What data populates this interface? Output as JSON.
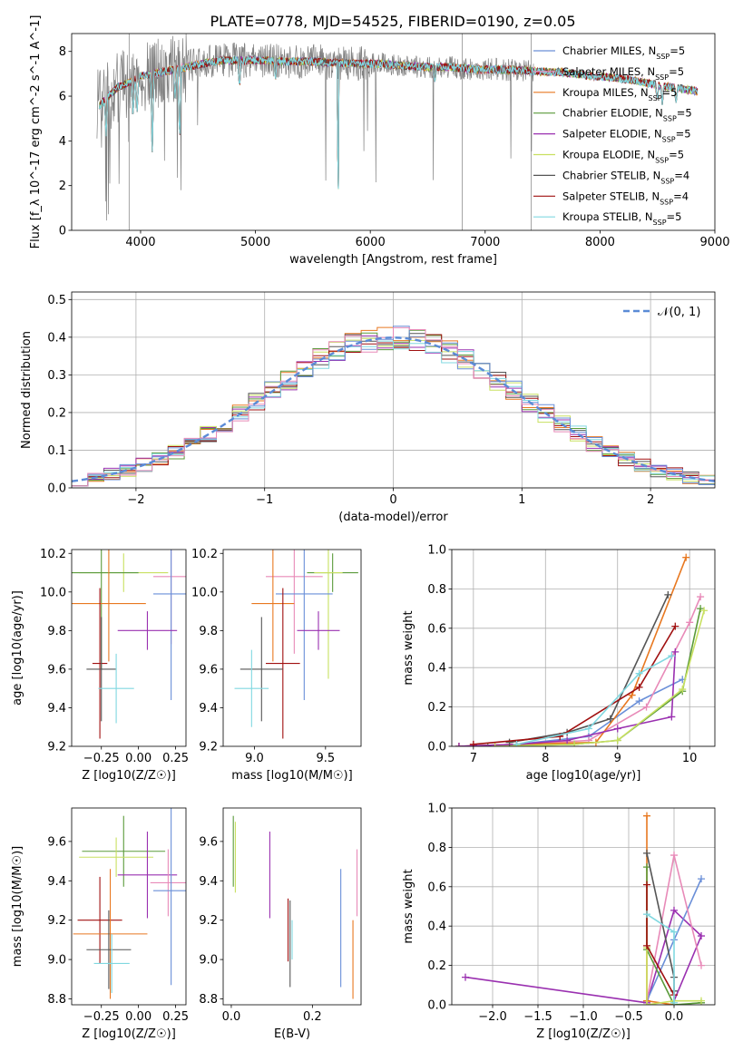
{
  "title": "PLATE=0778, MJD=54525, FIBERID=0190, z=0.05",
  "colors": {
    "Chabrier MILES": "#6a8fd8",
    "Salpeter MILES": "#e88ab8",
    "Kroupa MILES": "#e87820",
    "Chabrier ELODIE": "#5a9a3a",
    "Salpeter ELODIE": "#9a30b0",
    "Kroupa ELODIE": "#c8e060",
    "Chabrier STELIB": "#555555",
    "Salpeter STELIB": "#a01010",
    "Kroupa STELIB": "#80d8e0",
    "data": "#808080",
    "normal": "#5b8bd6"
  },
  "chart_data": [
    {
      "type": "line",
      "id": "spectrum",
      "xlabel": "wavelength [Angstrom, rest frame]",
      "ylabel": "Flux [f_λ 10^-17 erg cm^-2 s^-1 A^-1]",
      "xlim": [
        3400,
        9000
      ],
      "ylim": [
        0,
        8.8
      ],
      "xticks": [
        4000,
        5000,
        6000,
        7000,
        8000,
        9000
      ],
      "yticks": [
        0,
        2,
        4,
        6,
        8
      ],
      "grid": false,
      "legend_position": "right",
      "legend": [
        "Chabrier MILES, N_SSP=5",
        "Salpeter MILES, N_SSP=5",
        "Kroupa MILES, N_SSP=5",
        "Chabrier ELODIE, N_SSP=5",
        "Salpeter ELODIE, N_SSP=5",
        "Kroupa ELODIE, N_SSP=5",
        "Chabrier STELIB, N_SSP=4",
        "Salpeter STELIB, N_SSP=4",
        "Kroupa STELIB, N_SSP=5"
      ],
      "continuum": {
        "wavelength": [
          3650,
          3700,
          3800,
          3900,
          4000,
          4100,
          4300,
          4500,
          4700,
          4900,
          5100,
          5300,
          5500,
          5700,
          5900,
          6100,
          6300,
          6500,
          6700,
          6900,
          7100,
          7300,
          7500,
          7700,
          7900,
          8100,
          8300,
          8500,
          8700,
          8850
        ],
        "flux": [
          5.6,
          5.9,
          6.4,
          6.6,
          6.9,
          7.0,
          7.2,
          7.4,
          7.6,
          7.6,
          7.6,
          7.55,
          7.55,
          7.5,
          7.45,
          7.45,
          7.35,
          7.3,
          7.3,
          7.2,
          7.2,
          7.15,
          7.1,
          7.05,
          6.9,
          6.85,
          6.7,
          6.5,
          6.35,
          6.2
        ]
      },
      "model_absorption_features": [
        {
          "wavelength": 3700,
          "flux": 4.2
        },
        {
          "wavelength": 3935,
          "flux": 5.1
        },
        {
          "wavelength": 3970,
          "flux": 5.3
        },
        {
          "wavelength": 4102,
          "flux": 3.5
        },
        {
          "wavelength": 4300,
          "flux": 5.9
        },
        {
          "wavelength": 4340,
          "flux": 3.8
        },
        {
          "wavelength": 4861,
          "flux": 6.3
        },
        {
          "wavelength": 5175,
          "flux": 6.7
        },
        {
          "wavelength": 5720,
          "flux": 0.0
        },
        {
          "wavelength": 6563,
          "flux": 6.6
        },
        {
          "wavelength": 8498,
          "flux": 5.8
        },
        {
          "wavelength": 8542,
          "flux": 5.6
        },
        {
          "wavelength": 8662,
          "flux": 5.7
        }
      ],
      "data_gaps": [
        {
          "wavelength": 3900,
          "flux": 0.0
        },
        {
          "wavelength": 6800,
          "flux": 0.0
        },
        {
          "wavelength": 7400,
          "flux": 0.0
        }
      ]
    },
    {
      "type": "bar",
      "id": "residual_hist",
      "xlabel": "(data-model)/error",
      "ylabel": "Normed distribution",
      "xlim": [
        -2.5,
        2.5
      ],
      "ylim": [
        0,
        0.52
      ],
      "xticks": [
        -2,
        -1,
        0,
        1,
        2
      ],
      "yticks": [
        0.0,
        0.1,
        0.2,
        0.3,
        0.4,
        0.5
      ],
      "grid": true,
      "legend_position": "top-right",
      "legend": [
        "N(0,1)"
      ],
      "bin_width": 0.125
    },
    {
      "type": "scatter",
      "id": "age_vs_Z",
      "xlabel": "Z [log10(Z/Z☉)]",
      "ylabel": "age [log10(age/yr)]",
      "xlim": [
        -0.45,
        0.32
      ],
      "ylim": [
        9.2,
        10.22
      ],
      "xticks": [
        -0.25,
        0.0,
        0.25
      ],
      "yticks": [
        9.2,
        9.4,
        9.6,
        9.8,
        10.0,
        10.2
      ],
      "points": [
        {
          "model": "Kroupa ELODIE",
          "x": -0.1,
          "y": 10.1,
          "xerr": 0.3,
          "yerr": 0.1
        },
        {
          "model": "Chabrier ELODIE",
          "x": -0.25,
          "y": 10.1,
          "xerr": 0.25,
          "yerr": 0.5
        },
        {
          "model": "Salpeter MILES",
          "x": 0.22,
          "y": 10.08,
          "xerr": 0.12,
          "yerr": 0.35
        },
        {
          "model": "Chabrier MILES",
          "x": 0.22,
          "y": 9.99,
          "xerr": 0.12,
          "yerr": 0.55
        },
        {
          "model": "Kroupa MILES",
          "x": -0.2,
          "y": 9.94,
          "xerr": 0.25,
          "yerr": 0.3
        },
        {
          "model": "Salpeter ELODIE",
          "x": 0.06,
          "y": 9.8,
          "xerr": 0.2,
          "yerr": 0.1
        },
        {
          "model": "Salpeter STELIB",
          "x": -0.26,
          "y": 9.63,
          "xerr": 0.05,
          "yerr": 0.39
        },
        {
          "model": "Chabrier STELIB",
          "x": -0.25,
          "y": 9.6,
          "xerr": 0.1,
          "yerr": 0.27
        },
        {
          "model": "Kroupa STELIB",
          "x": -0.15,
          "y": 9.5,
          "xerr": 0.12,
          "yerr": 0.18
        }
      ]
    },
    {
      "type": "scatter",
      "id": "age_vs_mass",
      "xlabel": "mass [log10(M/M☉)]",
      "ylabel": "",
      "xlim": [
        8.78,
        9.75
      ],
      "ylim": [
        9.2,
        10.22
      ],
      "xticks": [
        9.0,
        9.5
      ],
      "yticks": [
        9.2,
        9.4,
        9.6,
        9.8,
        10.0,
        10.2
      ],
      "points": [
        {
          "model": "Chabrier ELODIE",
          "x": 9.55,
          "y": 10.1,
          "xerr": 0.18,
          "yerr": 0.1
        },
        {
          "model": "Kroupa ELODIE",
          "x": 9.52,
          "y": 10.1,
          "xerr": 0.1,
          "yerr": 0.55
        },
        {
          "model": "Salpeter MILES",
          "x": 9.28,
          "y": 10.08,
          "xerr": 0.2,
          "yerr": 0.4
        },
        {
          "model": "Chabrier MILES",
          "x": 9.35,
          "y": 9.99,
          "xerr": 0.2,
          "yerr": 0.55
        },
        {
          "model": "Kroupa MILES",
          "x": 9.13,
          "y": 9.94,
          "xerr": 0.15,
          "yerr": 0.3
        },
        {
          "model": "Salpeter ELODIE",
          "x": 9.45,
          "y": 9.8,
          "xerr": 0.15,
          "yerr": 0.1
        },
        {
          "model": "Salpeter STELIB",
          "x": 9.2,
          "y": 9.63,
          "xerr": 0.12,
          "yerr": 0.39
        },
        {
          "model": "Chabrier STELIB",
          "x": 9.05,
          "y": 9.6,
          "xerr": 0.15,
          "yerr": 0.27
        },
        {
          "model": "Kroupa STELIB",
          "x": 8.98,
          "y": 9.5,
          "xerr": 0.12,
          "yerr": 0.2
        }
      ]
    },
    {
      "type": "line",
      "id": "weight_vs_age",
      "xlabel": "age [log10(age/yr)]",
      "ylabel": "mass weight",
      "xlim": [
        6.7,
        10.35
      ],
      "ylim": [
        0.0,
        1.0
      ],
      "xticks": [
        7,
        8,
        9,
        10
      ],
      "yticks": [
        0.0,
        0.2,
        0.4,
        0.6,
        0.8,
        1.0
      ],
      "grid": true,
      "series": [
        {
          "model": "Chabrier MILES",
          "x": [
            6.8,
            7.6,
            8.6,
            9.3,
            9.9
          ],
          "y": [
            0.0,
            0.01,
            0.05,
            0.23,
            0.34
          ]
        },
        {
          "model": "Salpeter MILES",
          "x": [
            6.8,
            7.6,
            8.6,
            9.4,
            10.0,
            10.15
          ],
          "y": [
            0.0,
            0.01,
            0.03,
            0.2,
            0.63,
            0.76
          ]
        },
        {
          "model": "Kroupa MILES",
          "x": [
            6.8,
            7.6,
            8.7,
            9.2,
            9.95
          ],
          "y": [
            0.0,
            0.01,
            0.02,
            0.26,
            0.96
          ]
        },
        {
          "model": "Chabrier ELODIE",
          "x": [
            7.2,
            8.4,
            9.0,
            9.9,
            10.15
          ],
          "y": [
            0.0,
            0.01,
            0.03,
            0.28,
            0.7
          ]
        },
        {
          "model": "Salpeter ELODIE",
          "x": [
            6.8,
            7.6,
            8.3,
            9.0,
            9.75,
            9.8
          ],
          "y": [
            0.0,
            0.01,
            0.03,
            0.09,
            0.15,
            0.48
          ]
        },
        {
          "model": "Kroupa ELODIE",
          "x": [
            7.3,
            8.4,
            9.0,
            9.9,
            10.2
          ],
          "y": [
            0.0,
            0.01,
            0.03,
            0.29,
            0.69
          ]
        },
        {
          "model": "Chabrier STELIB",
          "x": [
            7.5,
            8.3,
            8.9,
            9.7
          ],
          "y": [
            0.02,
            0.07,
            0.14,
            0.77
          ]
        },
        {
          "model": "Salpeter STELIB",
          "x": [
            7.0,
            8.2,
            9.3,
            9.8
          ],
          "y": [
            0.01,
            0.05,
            0.3,
            0.61
          ]
        },
        {
          "model": "Kroupa STELIB",
          "x": [
            7.6,
            8.6,
            9.3,
            9.75
          ],
          "y": [
            0.01,
            0.09,
            0.37,
            0.46
          ]
        }
      ]
    },
    {
      "type": "scatter",
      "id": "mass_vs_Z",
      "xlabel": "Z [log10(Z/Z☉)]",
      "ylabel": "mass [log10(M/M☉)]",
      "xlim": [
        -0.45,
        0.32
      ],
      "ylim": [
        8.77,
        9.77
      ],
      "xticks": [
        -0.25,
        0.0,
        0.25
      ],
      "yticks": [
        8.8,
        9.0,
        9.2,
        9.4,
        9.6
      ],
      "points": [
        {
          "model": "Chabrier ELODIE",
          "x": -0.1,
          "y": 9.55,
          "xerr": 0.28,
          "yerr": 0.18
        },
        {
          "model": "Kroupa ELODIE",
          "x": -0.15,
          "y": 9.52,
          "xerr": 0.25,
          "yerr": 0.1
        },
        {
          "model": "Salpeter ELODIE",
          "x": 0.06,
          "y": 9.43,
          "xerr": 0.2,
          "yerr": 0.22
        },
        {
          "model": "Salpeter MILES",
          "x": 0.2,
          "y": 9.39,
          "xerr": 0.12,
          "yerr": 0.17
        },
        {
          "model": "Chabrier MILES",
          "x": 0.22,
          "y": 9.35,
          "xerr": 0.12,
          "yerr": 0.48
        },
        {
          "model": "Salpeter STELIB",
          "x": -0.26,
          "y": 9.2,
          "xerr": 0.15,
          "yerr": 0.22
        },
        {
          "model": "Kroupa MILES",
          "x": -0.19,
          "y": 9.13,
          "xerr": 0.25,
          "yerr": 0.33
        },
        {
          "model": "Chabrier STELIB",
          "x": -0.2,
          "y": 9.05,
          "xerr": 0.15,
          "yerr": 0.2
        },
        {
          "model": "Kroupa STELIB",
          "x": -0.18,
          "y": 8.98,
          "xerr": 0.12,
          "yerr": 0.15
        }
      ]
    },
    {
      "type": "scatter",
      "id": "mass_vs_ebv",
      "xlabel": "E(B-V)",
      "ylabel": "",
      "xlim": [
        -0.02,
        0.32
      ],
      "ylim": [
        8.77,
        9.77
      ],
      "xticks": [
        0.0,
        0.2
      ],
      "yticks": [
        8.8,
        9.0,
        9.2,
        9.4,
        9.6
      ],
      "points": [
        {
          "model": "Chabrier ELODIE",
          "x": 0.005,
          "y": 9.55,
          "xerr": 0.0,
          "yerr": 0.18
        },
        {
          "model": "Kroupa ELODIE",
          "x": 0.01,
          "y": 9.52,
          "xerr": 0.0,
          "yerr": 0.18
        },
        {
          "model": "Salpeter ELODIE",
          "x": 0.095,
          "y": 9.43,
          "xerr": 0.0,
          "yerr": 0.22
        },
        {
          "model": "Salpeter MILES",
          "x": 0.31,
          "y": 9.39,
          "xerr": 0.0,
          "yerr": 0.17
        },
        {
          "model": "Chabrier MILES",
          "x": 0.27,
          "y": 9.16,
          "xerr": 0.0,
          "yerr": 0.3
        },
        {
          "model": "Kroupa MILES",
          "x": 0.3,
          "y": 9.0,
          "xerr": 0.0,
          "yerr": 0.2
        },
        {
          "model": "Salpeter STELIB",
          "x": 0.14,
          "y": 9.15,
          "xerr": 0.0,
          "yerr": 0.16
        },
        {
          "model": "Chabrier STELIB",
          "x": 0.145,
          "y": 9.08,
          "xerr": 0.0,
          "yerr": 0.22
        },
        {
          "model": "Kroupa STELIB",
          "x": 0.15,
          "y": 9.1,
          "xerr": 0.0,
          "yerr": 0.1
        }
      ]
    },
    {
      "type": "line",
      "id": "weight_vs_Z",
      "xlabel": "Z [log10(Z/Z☉)]",
      "ylabel": "mass weight",
      "xlim": [
        -2.45,
        0.45
      ],
      "ylim": [
        0.0,
        1.0
      ],
      "xticks": [
        -2.0,
        -1.5,
        -1.0,
        -0.5,
        0.0
      ],
      "yticks": [
        0.0,
        0.2,
        0.4,
        0.6,
        0.8,
        1.0
      ],
      "grid": true,
      "series": [
        {
          "model": "Salpeter ELODIE",
          "x": [
            -2.3,
            -0.3,
            0.0,
            0.3,
            0.0
          ],
          "y": [
            0.14,
            0.01,
            0.48,
            0.35,
            0.02
          ]
        },
        {
          "model": "Chabrier MILES",
          "x": [
            -0.3,
            0.0,
            0.3
          ],
          "y": [
            0.02,
            0.33,
            0.64
          ]
        },
        {
          "model": "Salpeter MILES",
          "x": [
            -0.3,
            0.0,
            0.3
          ],
          "y": [
            0.02,
            0.76,
            0.2
          ]
        },
        {
          "model": "Kroupa MILES",
          "x": [
            -0.3,
            -0.3,
            0.0
          ],
          "y": [
            0.96,
            0.02,
            0.0
          ]
        },
        {
          "model": "Chabrier ELODIE",
          "x": [
            -0.3,
            -0.3,
            0.0,
            0.3
          ],
          "y": [
            0.7,
            0.28,
            0.0,
            0.01
          ]
        },
        {
          "model": "Kroupa ELODIE",
          "x": [
            -0.3,
            -0.3,
            0.0,
            0.3
          ],
          "y": [
            0.29,
            0.0,
            0.02,
            0.02
          ]
        },
        {
          "model": "Chabrier STELIB",
          "x": [
            -0.3,
            0.0,
            0.0
          ],
          "y": [
            0.77,
            0.14,
            0.07
          ]
        },
        {
          "model": "Salpeter STELIB",
          "x": [
            -0.3,
            -0.3,
            0.0
          ],
          "y": [
            0.61,
            0.3,
            0.05
          ]
        },
        {
          "model": "Kroupa STELIB",
          "x": [
            -0.3,
            0.0,
            0.0
          ],
          "y": [
            0.46,
            0.37,
            0.01
          ]
        }
      ]
    }
  ]
}
